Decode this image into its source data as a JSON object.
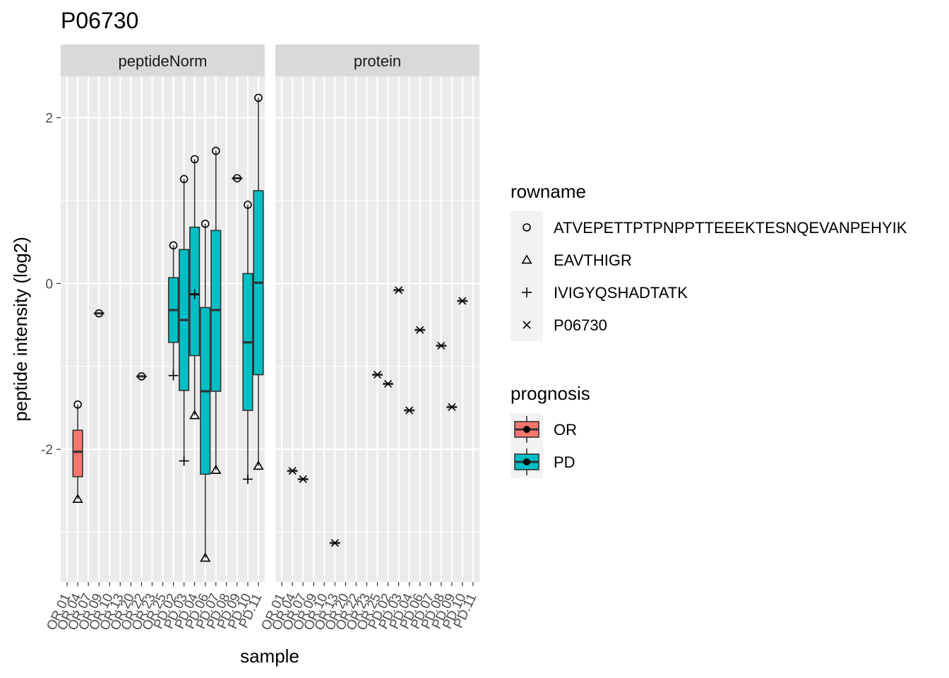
{
  "chart_data": {
    "type": "boxplot",
    "title": "P06730",
    "xlabel": "sample",
    "ylabel": "peptide intensity (log2)",
    "ylim": [
      -3.6,
      2.5
    ],
    "yticks": [
      -2,
      0,
      2
    ],
    "grid": true,
    "legend_position": "right",
    "samples": [
      "OR.01",
      "OR.04",
      "OR.07",
      "OR.09",
      "OR.10",
      "OR.13",
      "OR.20",
      "OR.22",
      "OR.23",
      "OR.25",
      "PD.02",
      "PD.03",
      "PD.04",
      "PD.06",
      "PD.07",
      "PD.08",
      "PD.09",
      "PD.10",
      "PD.11"
    ],
    "panels": [
      {
        "strip": "peptideNorm",
        "boxes": [
          {
            "sample": "OR.04",
            "group": "OR",
            "q1": -2.33,
            "median": -2.03,
            "q3": -1.77,
            "lower": -2.6,
            "upper": -1.46
          },
          {
            "sample": "OR.09",
            "group": "PD",
            "q1": -0.36,
            "median": -0.36,
            "q3": -0.36,
            "lower": -0.36,
            "upper": -0.36
          },
          {
            "sample": "OR.22",
            "group": "PD",
            "q1": -1.12,
            "median": -1.12,
            "q3": -1.12,
            "lower": -1.12,
            "upper": -1.12
          },
          {
            "sample": "PD.02",
            "group": "PD",
            "q1": -0.71,
            "median": -0.32,
            "q3": 0.07,
            "lower": -1.11,
            "upper": 0.46
          },
          {
            "sample": "PD.03",
            "group": "PD",
            "q1": -1.29,
            "median": -0.44,
            "q3": 0.41,
            "lower": -2.14,
            "upper": 1.26
          },
          {
            "sample": "PD.04",
            "group": "PD",
            "q1": -0.87,
            "median": -0.13,
            "q3": 0.68,
            "lower": -1.59,
            "upper": 1.5
          },
          {
            "sample": "PD.06",
            "group": "PD",
            "q1": -2.3,
            "median": -1.3,
            "q3": -0.29,
            "lower": -3.31,
            "upper": 0.72
          },
          {
            "sample": "PD.07",
            "group": "PD",
            "q1": -1.3,
            "median": -0.32,
            "q3": 0.64,
            "lower": -2.25,
            "upper": 1.6
          },
          {
            "sample": "PD.09",
            "group": "PD",
            "q1": 1.27,
            "median": 1.27,
            "q3": 1.27,
            "lower": 1.27,
            "upper": 1.27
          },
          {
            "sample": "PD.10",
            "group": "PD",
            "q1": -1.53,
            "median": -0.71,
            "q3": 0.12,
            "lower": -2.36,
            "upper": 0.95
          },
          {
            "sample": "PD.11",
            "group": "PD",
            "q1": -1.1,
            "median": 0.01,
            "q3": 1.12,
            "lower": -2.2,
            "upper": 2.24
          }
        ],
        "points": [
          {
            "sample": "OR.04",
            "rowname": "ATVEPETTPTPNPPTTEEEKTESNQEVANPEHYIK",
            "y": -1.46
          },
          {
            "sample": "OR.04",
            "rowname": "EAVTHIGR",
            "y": -2.6
          },
          {
            "sample": "OR.09",
            "rowname": "ATVEPETTPTPNPPTTEEEKTESNQEVANPEHYIK",
            "y": -0.36
          },
          {
            "sample": "OR.22",
            "rowname": "ATVEPETTPTPNPPTTEEEKTESNQEVANPEHYIK",
            "y": -1.12
          },
          {
            "sample": "PD.02",
            "rowname": "ATVEPETTPTPNPPTTEEEKTESNQEVANPEHYIK",
            "y": 0.46
          },
          {
            "sample": "PD.02",
            "rowname": "IVIGYQSHADTATK",
            "y": -1.11
          },
          {
            "sample": "PD.03",
            "rowname": "ATVEPETTPTPNPPTTEEEKTESNQEVANPEHYIK",
            "y": 1.26
          },
          {
            "sample": "PD.03",
            "rowname": "IVIGYQSHADTATK",
            "y": -2.14
          },
          {
            "sample": "PD.04",
            "rowname": "ATVEPETTPTPNPPTTEEEKTESNQEVANPEHYIK",
            "y": 1.5
          },
          {
            "sample": "PD.04",
            "rowname": "EAVTHIGR",
            "y": -1.59
          },
          {
            "sample": "PD.04",
            "rowname": "IVIGYQSHADTATK",
            "y": -0.13
          },
          {
            "sample": "PD.06",
            "rowname": "ATVEPETTPTPNPPTTEEEKTESNQEVANPEHYIK",
            "y": 0.72
          },
          {
            "sample": "PD.06",
            "rowname": "EAVTHIGR",
            "y": -3.31
          },
          {
            "sample": "PD.07",
            "rowname": "ATVEPETTPTPNPPTTEEEKTESNQEVANPEHYIK",
            "y": 1.6
          },
          {
            "sample": "PD.07",
            "rowname": "EAVTHIGR",
            "y": -2.25
          },
          {
            "sample": "PD.09",
            "rowname": "ATVEPETTPTPNPPTTEEEKTESNQEVANPEHYIK",
            "y": 1.27
          },
          {
            "sample": "PD.10",
            "rowname": "ATVEPETTPTPNPPTTEEEKTESNQEVANPEHYIK",
            "y": 0.95
          },
          {
            "sample": "PD.10",
            "rowname": "IVIGYQSHADTATK",
            "y": -2.36
          },
          {
            "sample": "PD.11",
            "rowname": "ATVEPETTPTPNPPTTEEEKTESNQEVANPEHYIK",
            "y": 2.24
          },
          {
            "sample": "PD.11",
            "rowname": "EAVTHIGR",
            "y": -2.2
          }
        ]
      },
      {
        "strip": "protein",
        "boxes": [
          {
            "sample": "OR.04",
            "group": "OR",
            "q1": -2.26,
            "median": -2.26,
            "q3": -2.26,
            "lower": -2.26,
            "upper": -2.26
          },
          {
            "sample": "OR.07",
            "group": "OR",
            "q1": -2.36,
            "median": -2.36,
            "q3": -2.36,
            "lower": -2.36,
            "upper": -2.36
          },
          {
            "sample": "OR.13",
            "group": "OR",
            "q1": -3.13,
            "median": -3.13,
            "q3": -3.13,
            "lower": -3.13,
            "upper": -3.13
          },
          {
            "sample": "OR.25",
            "group": "PD",
            "q1": -1.1,
            "median": -1.1,
            "q3": -1.1,
            "lower": -1.1,
            "upper": -1.1
          },
          {
            "sample": "PD.02",
            "group": "PD",
            "q1": -1.21,
            "median": -1.21,
            "q3": -1.21,
            "lower": -1.21,
            "upper": -1.21
          },
          {
            "sample": "PD.03",
            "group": "PD",
            "q1": -0.08,
            "median": -0.08,
            "q3": -0.08,
            "lower": -0.08,
            "upper": -0.08
          },
          {
            "sample": "PD.04",
            "group": "PD",
            "q1": -1.53,
            "median": -1.53,
            "q3": -1.53,
            "lower": -1.53,
            "upper": -1.53
          },
          {
            "sample": "PD.06",
            "group": "PD",
            "q1": -0.56,
            "median": -0.56,
            "q3": -0.56,
            "lower": -0.56,
            "upper": -0.56
          },
          {
            "sample": "PD.08",
            "group": "PD",
            "q1": -0.75,
            "median": -0.75,
            "q3": -0.75,
            "lower": -0.75,
            "upper": -0.75
          },
          {
            "sample": "PD.09",
            "group": "PD",
            "q1": -1.49,
            "median": -1.49,
            "q3": -1.49,
            "lower": -1.49,
            "upper": -1.49
          },
          {
            "sample": "PD.10",
            "group": "PD",
            "q1": -0.21,
            "median": -0.21,
            "q3": -0.21,
            "lower": -0.21,
            "upper": -0.21
          }
        ],
        "points": [
          {
            "sample": "OR.04",
            "rowname": "P06730",
            "y": -2.26
          },
          {
            "sample": "OR.07",
            "rowname": "P06730",
            "y": -2.36
          },
          {
            "sample": "OR.13",
            "rowname": "P06730",
            "y": -3.13
          },
          {
            "sample": "OR.25",
            "rowname": "P06730",
            "y": -1.1
          },
          {
            "sample": "PD.02",
            "rowname": "P06730",
            "y": -1.21
          },
          {
            "sample": "PD.03",
            "rowname": "P06730",
            "y": -0.08
          },
          {
            "sample": "PD.04",
            "rowname": "P06730",
            "y": -1.53
          },
          {
            "sample": "PD.06",
            "rowname": "P06730",
            "y": -0.56
          },
          {
            "sample": "PD.08",
            "rowname": "P06730",
            "y": -0.75
          },
          {
            "sample": "PD.09",
            "rowname": "P06730",
            "y": -1.49
          },
          {
            "sample": "PD.10",
            "rowname": "P06730",
            "y": -0.21
          }
        ]
      }
    ],
    "legends": {
      "rowname": {
        "title": "rowname",
        "items": [
          {
            "label": "ATVEPETTPTPNPPTTEEEKTESNQEVANPEHYIK",
            "shape": "circle-icon"
          },
          {
            "label": "EAVTHIGR",
            "shape": "triangle-icon"
          },
          {
            "label": "IVIGYQSHADTATK",
            "shape": "plus-icon"
          },
          {
            "label": "P06730",
            "shape": "cross-icon"
          }
        ]
      },
      "prognosis": {
        "title": "prognosis",
        "items": [
          {
            "label": "OR",
            "color": "#F8766D"
          },
          {
            "label": "PD",
            "color": "#00BFC4"
          }
        ]
      }
    }
  }
}
